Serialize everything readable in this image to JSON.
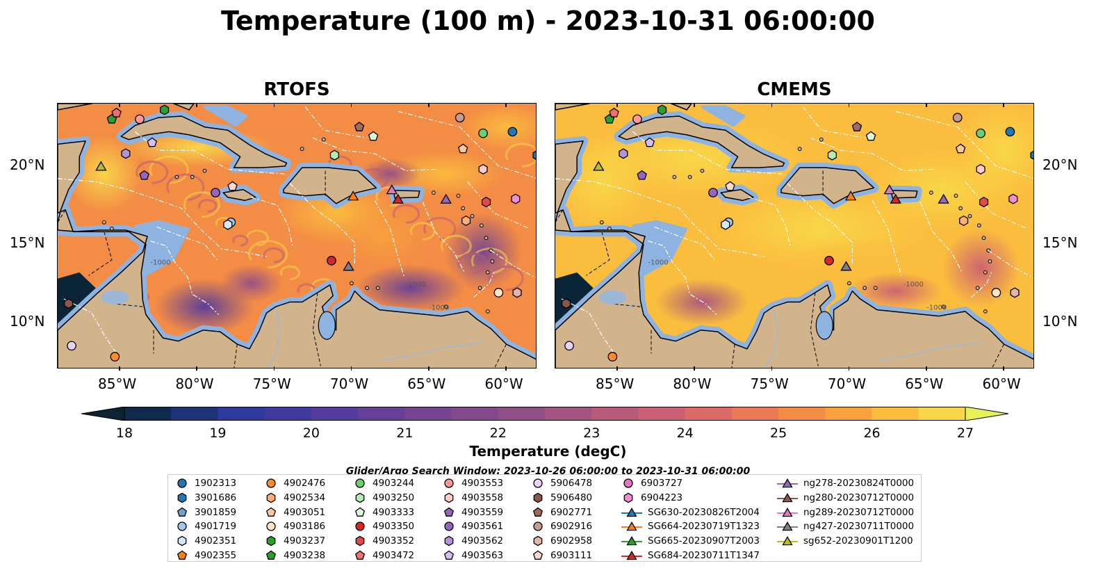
{
  "title": "Temperature (100 m) - 2023-10-31 06:00:00",
  "panels": [
    {
      "title": "RTOFS",
      "style": "rtofs"
    },
    {
      "title": "CMEMS",
      "style": "cmems"
    }
  ],
  "map": {
    "lon_range": [
      -89,
      -58
    ],
    "lat_range": [
      7,
      24
    ],
    "lon_ticks": [
      "85°W",
      "80°W",
      "75°W",
      "70°W",
      "65°W",
      "60°W"
    ],
    "lat_ticks": [
      "20°N",
      "15°N",
      "10°N"
    ],
    "contour_labels": [
      "-1000",
      "-1000",
      "-1000"
    ],
    "colors": {
      "land": "#d2b48c",
      "shelf": "#8fb3e0",
      "deep_outside": "#0a2538",
      "eez": "#ffffff",
      "border": "#000000"
    }
  },
  "colorbar": {
    "label": "Temperature (degC)",
    "min": 18,
    "max": 27,
    "step": 0.5,
    "ticks": [
      "18",
      "19",
      "20",
      "21",
      "22",
      "23",
      "24",
      "25",
      "26",
      "27"
    ],
    "colors": [
      "#0c2334",
      "#102a4e",
      "#1e3478",
      "#2e3a9e",
      "#42399f",
      "#553b9c",
      "#663f97",
      "#754492",
      "#83498c",
      "#924f86",
      "#a45481",
      "#b85a7a",
      "#cb6074",
      "#dc6b68",
      "#ea7a55",
      "#f38c45",
      "#f8a13d",
      "#fbbd3e",
      "#f8d849",
      "#e6f15a"
    ]
  },
  "search_window": "Glider/Argo Search Window: 2023-10-26 06:00:00 to 2023-10-31 06:00:00",
  "legend": [
    {
      "label": "1902313",
      "marker": "circle",
      "color": "#1f77b4"
    },
    {
      "label": "3901686",
      "marker": "hexagon",
      "color": "#1f77b4"
    },
    {
      "label": "3901859",
      "marker": "pentagon",
      "color": "#6aa2d0"
    },
    {
      "label": "4901719",
      "marker": "circle",
      "color": "#9ecae9"
    },
    {
      "label": "4902351",
      "marker": "hexagon",
      "color": "#d4e8f7"
    },
    {
      "label": "4902355",
      "marker": "pentagon",
      "color": "#ff7f0e"
    },
    {
      "label": "4902476",
      "marker": "circle",
      "color": "#ff8c2a"
    },
    {
      "label": "4902534",
      "marker": "hexagon",
      "color": "#ffb070"
    },
    {
      "label": "4903051",
      "marker": "pentagon",
      "color": "#ffc89a"
    },
    {
      "label": "4903186",
      "marker": "circle",
      "color": "#ffe3c4"
    },
    {
      "label": "4903237",
      "marker": "hexagon",
      "color": "#2ca02c"
    },
    {
      "label": "4903238",
      "marker": "pentagon",
      "color": "#2ca02c"
    },
    {
      "label": "4903244",
      "marker": "circle",
      "color": "#6cd06c"
    },
    {
      "label": "4903250",
      "marker": "hexagon",
      "color": "#b4ecb4"
    },
    {
      "label": "4903333",
      "marker": "pentagon",
      "color": "#daf7da"
    },
    {
      "label": "4903350",
      "marker": "circle",
      "color": "#d62728"
    },
    {
      "label": "4903352",
      "marker": "hexagon",
      "color": "#e04a4b"
    },
    {
      "label": "4903472",
      "marker": "pentagon",
      "color": "#f07070"
    },
    {
      "label": "4903553",
      "marker": "circle",
      "color": "#ff9896"
    },
    {
      "label": "4903558",
      "marker": "hexagon",
      "color": "#ffcccb"
    },
    {
      "label": "4903559",
      "marker": "pentagon",
      "color": "#9467bd"
    },
    {
      "label": "4903561",
      "marker": "circle",
      "color": "#9467bd"
    },
    {
      "label": "4903562",
      "marker": "hexagon",
      "color": "#b394d6"
    },
    {
      "label": "4903563",
      "marker": "pentagon",
      "color": "#d4bff0"
    },
    {
      "label": "5906478",
      "marker": "circle",
      "color": "#e5d4f7"
    },
    {
      "label": "5906480",
      "marker": "hexagon",
      "color": "#8c564b"
    },
    {
      "label": "6902771",
      "marker": "pentagon",
      "color": "#a06b5e"
    },
    {
      "label": "6902916",
      "marker": "circle",
      "color": "#c49c94"
    },
    {
      "label": "6902958",
      "marker": "hexagon",
      "color": "#e4b4a8"
    },
    {
      "label": "6903111",
      "marker": "pentagon",
      "color": "#fbd7cd"
    },
    {
      "label": "6903727",
      "marker": "circle",
      "color": "#e377c2"
    },
    {
      "label": "6904223",
      "marker": "hexagon",
      "color": "#f08fd0"
    },
    {
      "label": "SG630-20230826T2004",
      "marker": "triangle-line",
      "color": "#1f77b4"
    },
    {
      "label": "SG664-20230719T1323",
      "marker": "triangle-line",
      "color": "#ff7f0e"
    },
    {
      "label": "SG665-20230907T2003",
      "marker": "triangle-line",
      "color": "#2ca02c"
    },
    {
      "label": "SG684-20230711T1347",
      "marker": "triangle-line",
      "color": "#d62728"
    },
    {
      "label": "ng278-20230824T0000",
      "marker": "triangle-line",
      "color": "#9467bd"
    },
    {
      "label": "ng280-20230712T0000",
      "marker": "triangle-line",
      "color": "#8c564b"
    },
    {
      "label": "ng289-20230712T0000",
      "marker": "triangle-line",
      "color": "#e377c2"
    },
    {
      "label": "ng427-20230711T0000",
      "marker": "triangle-line",
      "color": "#7f7f7f"
    },
    {
      "label": "sg652-20230901T1200",
      "marker": "triangle-line",
      "color": "#bcbd22"
    }
  ],
  "floats": [
    {
      "id": "1902313",
      "lon": -59.6,
      "lat": 22.2
    },
    {
      "id": "3901686",
      "lon": -58.0,
      "lat": 20.7
    },
    {
      "id": "4901719",
      "lon": -77.8,
      "lat": 16.4
    },
    {
      "id": "4902351",
      "lon": -78.0,
      "lat": 16.25
    },
    {
      "id": "4902476",
      "lon": -85.3,
      "lat": 7.8
    },
    {
      "id": "4902534",
      "lon": -62.6,
      "lat": 16.5
    },
    {
      "id": "4903051",
      "lon": -62.8,
      "lat": 21.1
    },
    {
      "id": "4903186",
      "lon": -60.5,
      "lat": 11.9
    },
    {
      "id": "4903244",
      "lon": -61.5,
      "lat": 22.1
    },
    {
      "id": "4903237",
      "lon": -82.1,
      "lat": 23.6
    },
    {
      "id": "4903238",
      "lon": -85.5,
      "lat": 23.0
    },
    {
      "id": "4903250",
      "lon": -71.1,
      "lat": 20.7
    },
    {
      "id": "4903333",
      "lon": -68.6,
      "lat": 21.9
    },
    {
      "id": "4903350",
      "lon": -71.3,
      "lat": 13.95
    },
    {
      "id": "4903352",
      "lon": -61.3,
      "lat": 17.7
    },
    {
      "id": "4903472",
      "lon": -85.2,
      "lat": 23.4
    },
    {
      "id": "4903553",
      "lon": -83.7,
      "lat": 23.0
    },
    {
      "id": "4903558",
      "lon": -61.5,
      "lat": 19.8
    },
    {
      "id": "4903559",
      "lon": -83.4,
      "lat": 19.4
    },
    {
      "id": "4903561",
      "lon": -78.8,
      "lat": 18.3
    },
    {
      "id": "4903562",
      "lon": -84.6,
      "lat": 20.8
    },
    {
      "id": "4903563",
      "lon": -82.9,
      "lat": 21.5
    },
    {
      "id": "5906478",
      "lon": -88.1,
      "lat": 8.5
    },
    {
      "id": "5906480",
      "lon": -88.3,
      "lat": 11.2
    },
    {
      "id": "6902771",
      "lon": -69.5,
      "lat": 22.5
    },
    {
      "id": "6902916",
      "lon": -63.0,
      "lat": 23.1
    },
    {
      "id": "6902958",
      "lon": -59.3,
      "lat": 11.9
    },
    {
      "id": "6903111",
      "lon": -77.7,
      "lat": 18.7
    },
    {
      "id": "6904223",
      "lon": -59.4,
      "lat": 17.9
    }
  ],
  "gliders": [
    {
      "id": "SG664-20230719T1323",
      "lon": -69.9,
      "lat": 18.1
    },
    {
      "id": "SG684-20230711T1347",
      "lon": -67.0,
      "lat": 17.9
    },
    {
      "id": "ng278-20230824T0000",
      "lon": -63.9,
      "lat": 17.9
    },
    {
      "id": "ng289-20230712T0000",
      "lon": -67.4,
      "lat": 18.5
    },
    {
      "id": "ng427-20230711T0000",
      "lon": -70.2,
      "lat": 13.6
    },
    {
      "id": "sg652-20230901T1200",
      "lon": -86.2,
      "lat": 20.0
    }
  ],
  "warm_blobs": {
    "rtofs": [
      {
        "lon": -80,
        "lat": 21.2,
        "rx": 5,
        "ry": 1.3,
        "v": 26.8
      },
      {
        "lon": -86,
        "lat": 19.5,
        "rx": 2.5,
        "ry": 2.5,
        "v": 26.8
      },
      {
        "lon": -71,
        "lat": 17.0,
        "rx": 4,
        "ry": 2,
        "v": 26.4
      },
      {
        "lon": -64,
        "lat": 19.5,
        "rx": 4,
        "ry": 1.5,
        "v": 26.2
      },
      {
        "lon": -60,
        "lat": 22.5,
        "rx": 3,
        "ry": 1.5,
        "v": 26.0
      },
      {
        "lon": -75,
        "lat": 14.5,
        "rx": 4,
        "ry": 1.8,
        "v": 25.4
      },
      {
        "lon": -68,
        "lat": 15.5,
        "rx": 3,
        "ry": 2,
        "v": 25.6
      }
    ],
    "cmems": [
      {
        "lon": -80,
        "lat": 20.5,
        "rx": 7,
        "ry": 2.5,
        "v": 26.9
      },
      {
        "lon": -86,
        "lat": 19.0,
        "rx": 3,
        "ry": 3,
        "v": 26.9
      },
      {
        "lon": -72,
        "lat": 16.0,
        "rx": 7,
        "ry": 2.5,
        "v": 26.8
      },
      {
        "lon": -64,
        "lat": 18.5,
        "rx": 5,
        "ry": 2.5,
        "v": 26.7
      },
      {
        "lon": -69,
        "lat": 13.5,
        "rx": 5,
        "ry": 2,
        "v": 26.3
      },
      {
        "lon": -60,
        "lat": 21.0,
        "rx": 3,
        "ry": 3,
        "v": 26.5
      }
    ]
  },
  "cool_blobs": {
    "rtofs": [
      {
        "lon": -79.5,
        "lat": 11.0,
        "rx": 3.2,
        "ry": 1.8,
        "v": 20.4
      },
      {
        "lon": -66.2,
        "lat": 12.2,
        "rx": 3.5,
        "ry": 1.5,
        "v": 20.8
      },
      {
        "lon": -61.5,
        "lat": 14.5,
        "rx": 2.5,
        "ry": 2.5,
        "v": 21.4
      },
      {
        "lon": -67.5,
        "lat": 19.5,
        "rx": 2,
        "ry": 1,
        "v": 22.4
      },
      {
        "lon": -76.5,
        "lat": 12.5,
        "rx": 2,
        "ry": 1.2,
        "v": 22.0
      }
    ],
    "cmems": [
      {
        "lon": -79.5,
        "lat": 11.3,
        "rx": 3,
        "ry": 1.5,
        "v": 22.6
      },
      {
        "lon": -67,
        "lat": 12.0,
        "rx": 3,
        "ry": 1.2,
        "v": 23.6
      },
      {
        "lon": -61.5,
        "lat": 13.5,
        "rx": 2.5,
        "ry": 2.5,
        "v": 23.8
      }
    ]
  }
}
